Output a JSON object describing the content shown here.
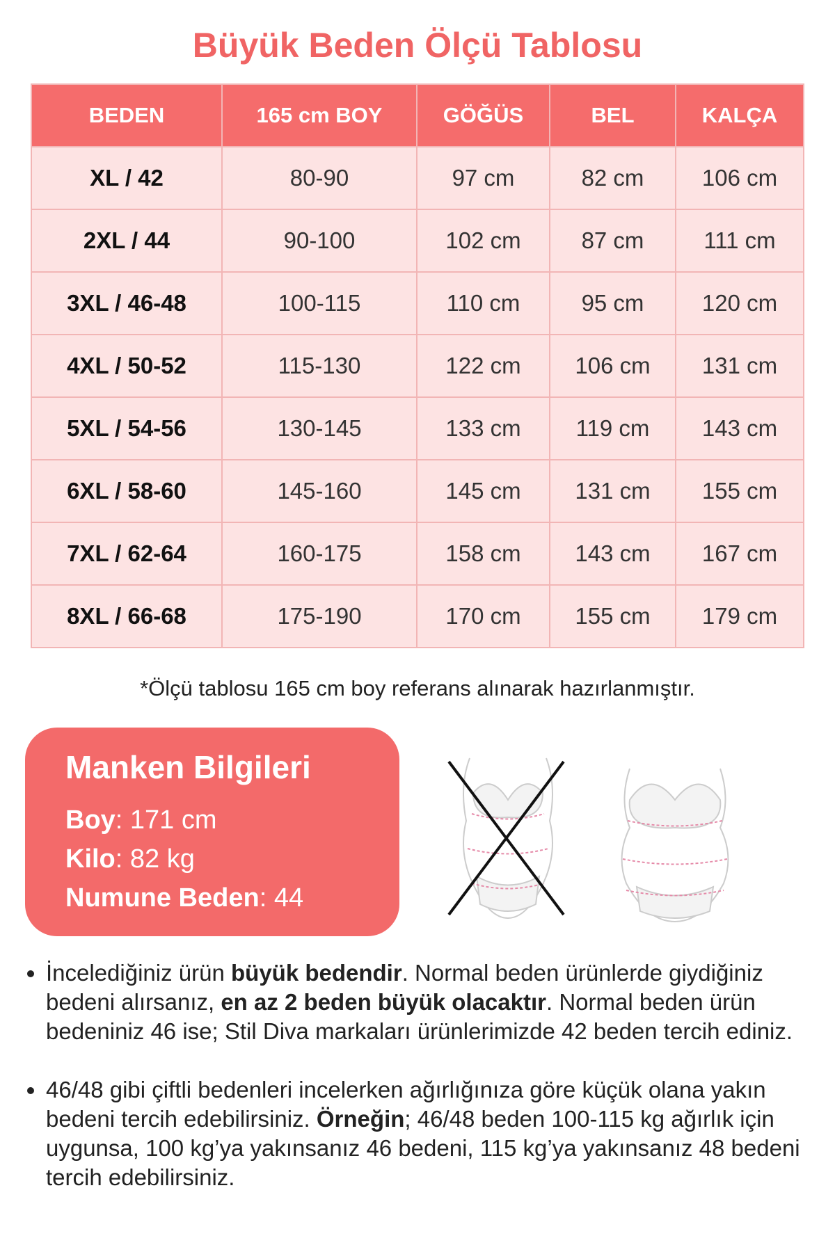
{
  "title": "Büyük Beden Ölçü Tablosu",
  "table": {
    "headers": [
      "BEDEN",
      "165 cm BOY",
      "GÖĞÜS",
      "BEL",
      "KALÇA"
    ],
    "rows": [
      [
        "XL / 42",
        "80-90",
        "97 cm",
        "82 cm",
        "106 cm"
      ],
      [
        "2XL / 44",
        "90-100",
        "102 cm",
        "87 cm",
        "111 cm"
      ],
      [
        "3XL / 46-48",
        "100-115",
        "110 cm",
        "95 cm",
        "120 cm"
      ],
      [
        "4XL / 50-52",
        "115-130",
        "122 cm",
        "106 cm",
        "131 cm"
      ],
      [
        "5XL / 54-56",
        "130-145",
        "133 cm",
        "119 cm",
        "143 cm"
      ],
      [
        "6XL / 58-60",
        "145-160",
        "145 cm",
        "131 cm",
        "155 cm"
      ],
      [
        "7XL / 62-64",
        "160-175",
        "158 cm",
        "143 cm",
        "167 cm"
      ],
      [
        "8XL / 66-68",
        "175-190",
        "170 cm",
        "155 cm",
        "179 cm"
      ]
    ]
  },
  "note": "*Ölçü tablosu 165 cm boy referans alınarak hazırlanmıştır.",
  "model": {
    "title": "Manken Bilgileri",
    "items": [
      {
        "label": "Boy",
        "value": ": 171 cm"
      },
      {
        "label": "Kilo",
        "value": ": 82 kg"
      },
      {
        "label": "Numune Beden",
        "value": ": 44"
      }
    ]
  },
  "bullets": [
    [
      {
        "text": "İncelediğiniz ürün ",
        "bold": false
      },
      {
        "text": "büyük bedendir",
        "bold": true
      },
      {
        "text": ". Normal beden ürünlerde giydiğiniz bedeni alırsanız, ",
        "bold": false
      },
      {
        "text": "en az 2 beden büyük olacaktır",
        "bold": true
      },
      {
        "text": ". Normal beden ürün bedeniniz 46 ise; Stil Diva markaları ürünlerimizde 42 beden tercih ediniz.",
        "bold": false
      }
    ],
    [
      {
        "text": "46/48 gibi çiftli bedenleri incelerken ağırlığınıza göre küçük olana yakın bedeni tercih edebilirsiniz. ",
        "bold": false
      },
      {
        "text": "Örneğin",
        "bold": true
      },
      {
        "text": "; 46/48 beden 100-115 kg ağırlık için uygunsa, 100 kg’ya yakınsanız 46 bedeni, 115 kg’ya yakınsanız 48 bedeni tercih edebilirsiniz.",
        "bold": false
      }
    ]
  ]
}
